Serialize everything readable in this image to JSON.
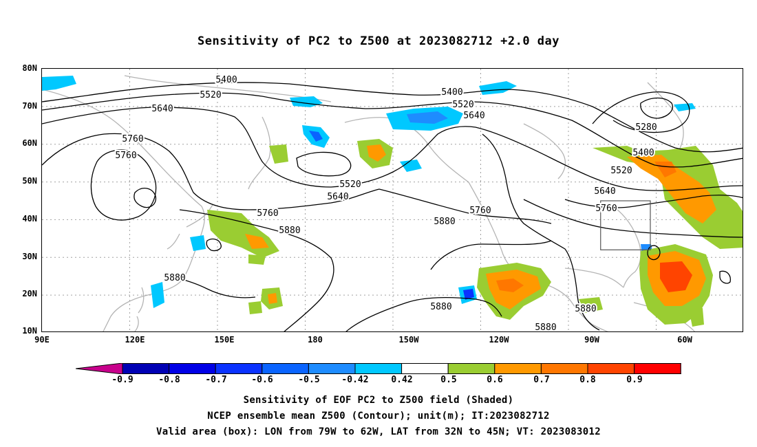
{
  "title": "Sensitivity of PC2 to Z500 at 2023082712 +2.0 day",
  "lat_labels": [
    "80N",
    "70N",
    "60N",
    "50N",
    "40N",
    "30N",
    "20N",
    "10N"
  ],
  "lon_labels": [
    "90E",
    "120E",
    "150E",
    "180",
    "150W",
    "120W",
    "90W",
    "60W"
  ],
  "contour_labels": [
    "5400",
    "5520",
    "5640",
    "5760",
    "5760",
    "5520",
    "5640",
    "5760",
    "5880",
    "5880",
    "5400",
    "5520",
    "5640",
    "5280",
    "5400",
    "5520",
    "5640",
    "5760",
    "5760",
    "5880",
    "5880",
    "5880",
    "5880"
  ],
  "colorbar": {
    "labels": [
      "-0.9",
      "-0.8",
      "-0.7",
      "-0.6",
      "-0.5",
      "-0.42",
      "0.42",
      "0.5",
      "0.6",
      "0.7",
      "0.8",
      "0.9"
    ],
    "colors": [
      "#0000b4",
      "#0000e6",
      "#0a32ff",
      "#0a64ff",
      "#1e8cff",
      "#00c8ff",
      "#ffffff",
      "#9acd32",
      "#ff9900",
      "#ff7700",
      "#ff4400",
      "#ff0000"
    ],
    "under_color": "#c8008c",
    "over_color": "#ff96c8"
  },
  "captions": [
    "Sensitivity of EOF PC2 to Z500 field (Shaded)",
    "NCEP ensemble mean Z500 (Contour); unit(m); IT:2023082712",
    "Valid area (box): LON from 79W to 62W, LAT from 32N to 45N; VT: 2023083012"
  ],
  "valid_box": {
    "lon_min": -79,
    "lon_max": -62,
    "lat_min": 32,
    "lat_max": 45
  }
}
